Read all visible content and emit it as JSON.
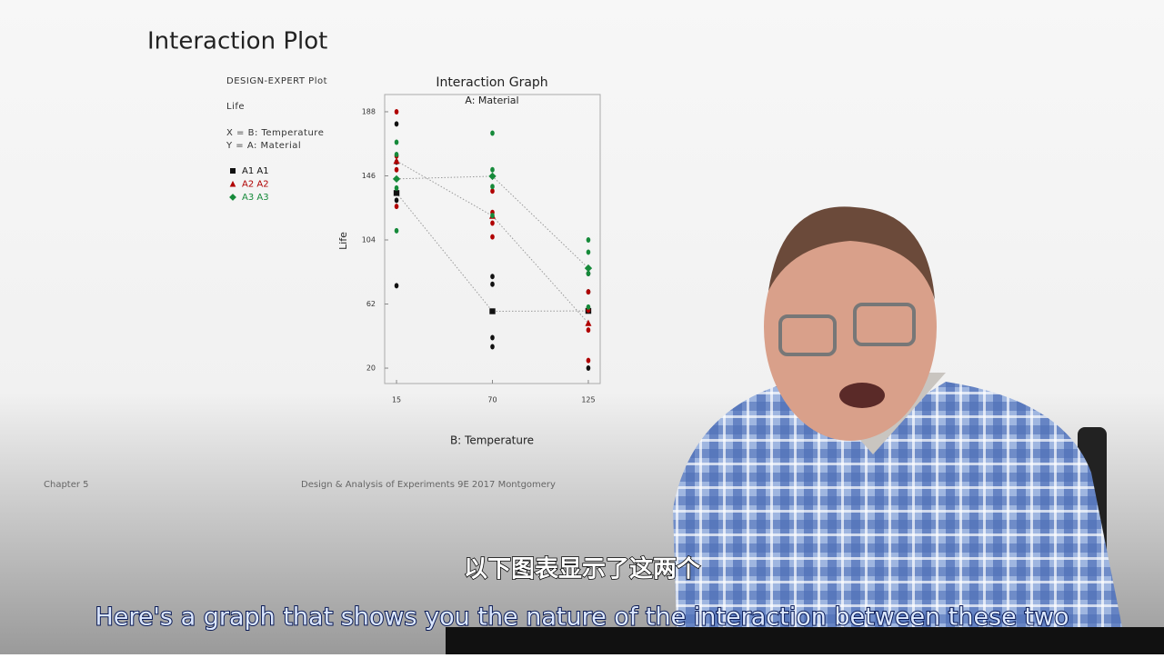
{
  "slide_title": "Interaction Plot",
  "footer_left": "Chapter 5",
  "footer_center": "Design & Analysis of Experiments 9E 2017 Montgomery",
  "caption_zh": "以下图表显示了这两个",
  "caption_en": "Here's a graph that shows you the nature of the interaction between these two",
  "chart_data": {
    "type": "line",
    "side_notes": [
      "DESIGN-EXPERT Plot",
      "Life",
      "X = B: Temperature",
      "Y = A: Material"
    ],
    "title": "Interaction Graph",
    "subtitle": "A: Material",
    "x_label": "B: Temperature",
    "y_label": "Life",
    "x": [
      15,
      70,
      125
    ],
    "xlim": [
      8.2,
      131.8
    ],
    "xticks": [
      15,
      70,
      125
    ],
    "ylim": [
      9.9,
      199.3
    ],
    "yticks": [
      20,
      62,
      104,
      146,
      188
    ],
    "series": [
      {
        "name": "A1 A1",
        "color": "#111111",
        "marker": "square",
        "values": [
          134.75,
          57.25,
          57.5
        ],
        "obs_x": [
          15,
          15,
          15,
          15,
          70,
          70,
          70,
          70,
          125,
          125,
          125,
          125
        ],
        "obs_y": [
          130,
          155,
          74,
          180,
          34,
          40,
          80,
          75,
          20,
          70,
          82,
          58
        ]
      },
      {
        "name": "A2 A2",
        "color": "#b00000",
        "marker": "triangle",
        "values": [
          155.75,
          119.75,
          49.5
        ],
        "obs_x": [
          15,
          15,
          15,
          15,
          70,
          70,
          70,
          70,
          125,
          125,
          125,
          125
        ],
        "obs_y": [
          150,
          188,
          159,
          126,
          136,
          122,
          106,
          115,
          25,
          70,
          58,
          45
        ]
      },
      {
        "name": "A3 A3",
        "color": "#168a3a",
        "marker": "diamond",
        "values": [
          144,
          145.75,
          85.5
        ],
        "obs_x": [
          15,
          15,
          15,
          15,
          70,
          70,
          70,
          70,
          125,
          125,
          125,
          125
        ],
        "obs_y": [
          138,
          110,
          168,
          160,
          174,
          120,
          150,
          139,
          96,
          104,
          82,
          60
        ]
      }
    ]
  }
}
